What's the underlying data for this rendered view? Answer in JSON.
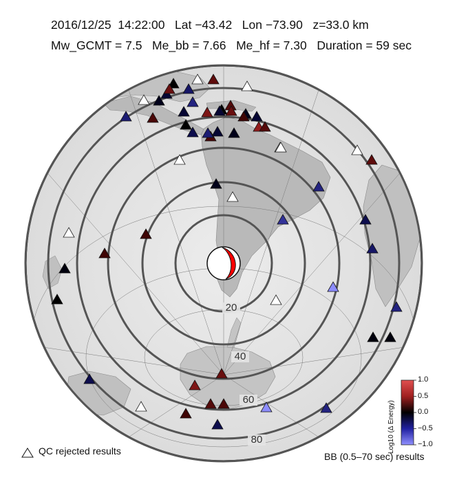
{
  "header": {
    "line1": "2016/12/25  14:22:00   Lat −43.42   Lon −73.90   z=33.0 km",
    "line2": "Mw_GCMT = 7.5   Me_bb = 7.66   Me_hf = 7.30   Duration = 59 sec"
  },
  "event": {
    "date": "2016/12/25",
    "time": "14:22:00",
    "lat": -43.42,
    "lon": -73.9,
    "depth_km": 33.0,
    "mw_gcmt": 7.5,
    "me_bb": 7.66,
    "me_hf": 7.3,
    "duration_sec": 59
  },
  "map": {
    "projection": "azimuthal, centered on epicenter",
    "distance_rings_deg": [
      10,
      20,
      30,
      40,
      50,
      60,
      70,
      80
    ],
    "ring_labels": [
      "20",
      "40",
      "60",
      "80"
    ],
    "beachball_colors": {
      "compressional": "#ff0000",
      "dilatational": "#ffffff"
    }
  },
  "legend": {
    "qc_label": "QC rejected results",
    "bb_label": "BB (0.5–70 sec) results"
  },
  "colorbar": {
    "title": "Log10 (Δ Energy)",
    "ticks": [
      "1.0",
      "0.5",
      "0.0",
      "−0.5",
      "−1.0"
    ],
    "range": [
      -1.0,
      1.0
    ],
    "colors": {
      "low": "#8080ff",
      "mid": "#000000",
      "high": "#cc2020"
    }
  },
  "stations": [
    {
      "v": 0.0,
      "qc": false
    },
    {
      "v": 0.45,
      "qc": false
    },
    {
      "v": null,
      "qc": true
    },
    {
      "v": -0.2,
      "qc": false
    },
    {
      "v": null,
      "qc": true
    },
    {
      "v": -0.4,
      "qc": false
    },
    {
      "v": 0.5,
      "qc": false
    },
    {
      "v": -0.1,
      "qc": false
    },
    {
      "v": null,
      "qc": true
    },
    {
      "v": -0.5,
      "qc": false
    },
    {
      "v": 0.4,
      "qc": false
    },
    {
      "v": -0.1,
      "qc": false
    },
    {
      "v": 0.0,
      "qc": false
    },
    {
      "v": 0.5,
      "qc": false
    },
    {
      "v": 0.7,
      "qc": false
    },
    {
      "v": 0.4,
      "qc": false
    },
    {
      "v": -0.2,
      "qc": false
    },
    {
      "v": 0.3,
      "qc": false
    },
    {
      "v": 0.6,
      "qc": false
    },
    {
      "v": -0.2,
      "qc": false
    },
    {
      "v": 0.0,
      "qc": false
    },
    {
      "v": -0.3,
      "qc": false
    },
    {
      "v": 0.35,
      "qc": false
    },
    {
      "v": -0.2,
      "qc": false
    },
    {
      "v": null,
      "qc": true
    },
    {
      "v": null,
      "qc": true
    },
    {
      "v": 0.45,
      "qc": false
    },
    {
      "v": -0.1,
      "qc": false
    },
    {
      "v": null,
      "qc": true
    },
    {
      "v": -0.45,
      "qc": false
    },
    {
      "v": -0.45,
      "qc": false
    },
    {
      "v": null,
      "qc": true
    },
    {
      "v": -0.1,
      "qc": false
    },
    {
      "v": -0.2,
      "qc": false
    },
    {
      "v": 0.35,
      "qc": false
    },
    {
      "v": null,
      "qc": true
    },
    {
      "v": 0.3,
      "qc": false
    },
    {
      "v": 0.3,
      "qc": false
    },
    {
      "v": -0.5,
      "qc": false
    },
    {
      "v": -0.6,
      "qc": false
    },
    {
      "v": null,
      "qc": true
    },
    {
      "v": -0.05,
      "qc": false
    },
    {
      "v": 0.0,
      "qc": false
    },
    {
      "v": -0.3,
      "qc": false
    },
    {
      "v": null,
      "qc": true
    },
    {
      "v": 0.5,
      "qc": false
    },
    {
      "v": 0.6,
      "qc": false
    },
    {
      "v": 0.4,
      "qc": false
    },
    {
      "v": 0.35,
      "qc": false
    },
    {
      "v": 0.3,
      "qc": false
    },
    {
      "v": null,
      "qc": true
    },
    {
      "v": -0.3,
      "qc": false
    },
    {
      "v": -1.0,
      "qc": false
    },
    {
      "v": -0.5,
      "qc": false
    }
  ]
}
